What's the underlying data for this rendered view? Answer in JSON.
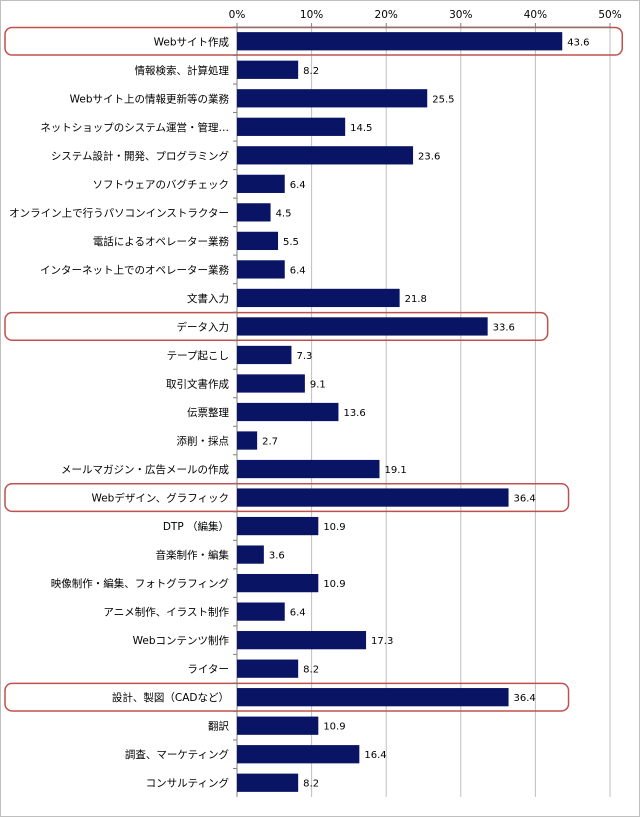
{
  "chart_data": {
    "type": "bar",
    "orientation": "horizontal",
    "categories": [
      "Webサイト作成",
      "情報検索、計算処理",
      "Webサイト上の情報更新等の業務",
      "ネットショップのシステム運営・管理…",
      "システム設計・開発、プログラミング",
      "ソフトウェアのバグチェック",
      "オンライン上で行うパソコンインストラクター",
      "電話によるオペレーター業務",
      "インターネット上でのオペレーター業務",
      "文書入力",
      "データ入力",
      "テープ起こし",
      "取引文書作成",
      "伝票整理",
      "添削・採点",
      "メールマガジン・広告メールの作成",
      "Webデザイン、グラフィック",
      "DTP （編集）",
      "音楽制作・編集",
      "映像制作・編集、フォトグラフィング",
      "アニメ制作、イラスト制作",
      "Webコンテンツ制作",
      "ライター",
      "設計、製図（CADなど）",
      "翻訳",
      "調査、マーケティング",
      "コンサルティング"
    ],
    "values": [
      43.6,
      8.2,
      25.5,
      14.5,
      23.6,
      6.4,
      4.5,
      5.5,
      6.4,
      21.8,
      33.6,
      7.3,
      9.1,
      13.6,
      2.7,
      19.1,
      36.4,
      10.9,
      3.6,
      10.9,
      6.4,
      17.3,
      8.2,
      36.4,
      10.9,
      16.4,
      8.2
    ],
    "value_labels": [
      "43.6",
      "8.2",
      "25.5",
      "14.5",
      "23.6",
      "6.4",
      "4.5",
      "5.5",
      "6.4",
      "21.8",
      "33.6",
      "7.3",
      "9.1",
      "13.6",
      "2.7",
      "19.1",
      "36.4",
      "10.9",
      "3.6",
      "10.9",
      "6.4",
      "17.3",
      "8.2",
      "36.4",
      "10.9",
      "16.4",
      "8.2"
    ],
    "highlighted": [
      "Webサイト作成",
      "データ入力",
      "Webデザイン、グラフィック",
      "設計、製図（CADなど）"
    ],
    "xlim": [
      0,
      50
    ],
    "x_ticks": [
      "0%",
      "10%",
      "20%",
      "30%",
      "40%",
      "50%"
    ],
    "grid": true,
    "legend": "none",
    "colors": {
      "bar": "#0a1464",
      "highlight_border": "#c0504d",
      "grid": "#bfbfbf",
      "axis": "#808080"
    }
  }
}
